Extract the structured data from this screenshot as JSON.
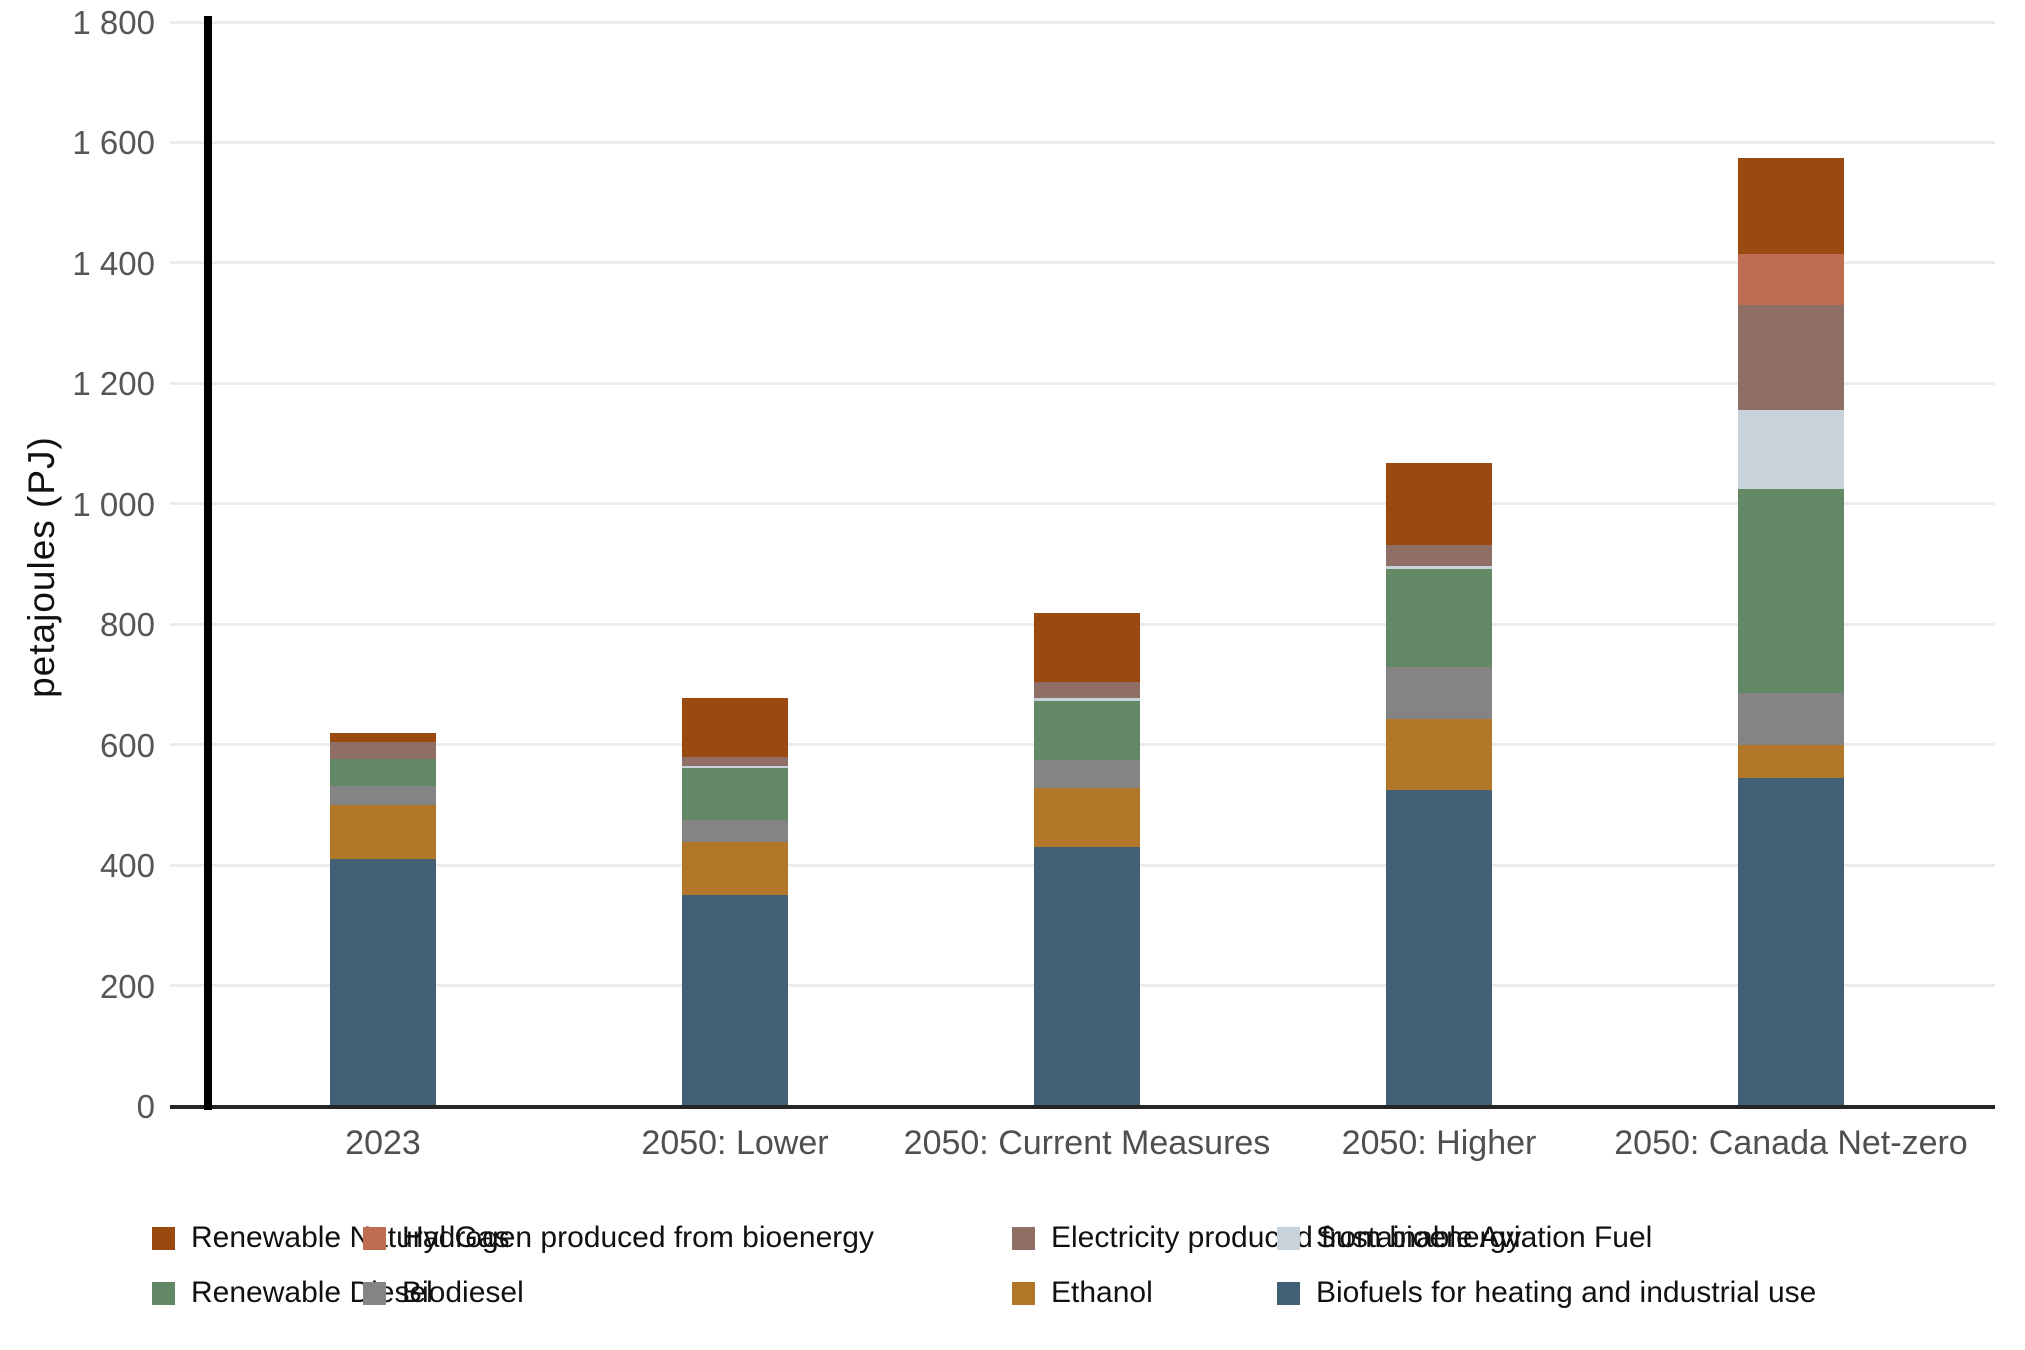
{
  "chart_data": {
    "type": "bar",
    "stacked": true,
    "title": "",
    "xlabel": "",
    "ylabel": "petajoules (PJ)",
    "ylim": [
      0,
      1800
    ],
    "grid": true,
    "legend_position": "bottom",
    "yticks": [
      {
        "value": 0,
        "label": "0"
      },
      {
        "value": 200,
        "label": "200"
      },
      {
        "value": 400,
        "label": "400"
      },
      {
        "value": 600,
        "label": "600"
      },
      {
        "value": 800,
        "label": "800"
      },
      {
        "value": 1000,
        "label": "1 000"
      },
      {
        "value": 1200,
        "label": "1 200"
      },
      {
        "value": 1400,
        "label": "1 400"
      },
      {
        "value": 1600,
        "label": "1 600"
      },
      {
        "value": 1800,
        "label": "1 800"
      }
    ],
    "categories": [
      "2023",
      "2050: Lower",
      "2050: Current Measures",
      "2050: Higher",
      "2050: Canada Net-zero"
    ],
    "series": [
      {
        "name": "Biofuels for heating and industrial use",
        "color": "#416073",
        "values": [
          410,
          350,
          430,
          525,
          545
        ]
      },
      {
        "name": "Ethanol",
        "color": "#b27629",
        "values": [
          90,
          88,
          98,
          118,
          55
        ]
      },
      {
        "name": "Biodiesel",
        "color": "#848484",
        "values": [
          31,
          37,
          47,
          86,
          85
        ]
      },
      {
        "name": "Renewable Diesel",
        "color": "#638865",
        "values": [
          45,
          86,
          98,
          163,
          340
        ]
      },
      {
        "name": "Sustainable Aviation Fuel",
        "color": "#c7d2db",
        "values": [
          0,
          3,
          5,
          5,
          130
        ]
      },
      {
        "name": "Electricity produced from bioenergy",
        "color": "#8f6e65",
        "values": [
          28,
          15,
          26,
          35,
          175
        ]
      },
      {
        "name": "Hydrogen produced from bioenergy",
        "color": "#bf6d50",
        "values": [
          0,
          0,
          0,
          0,
          85
        ]
      },
      {
        "name": "Renewable Natural Gas",
        "color": "#9a4a10",
        "values": [
          15,
          98,
          115,
          135,
          160
        ]
      }
    ],
    "legend_items": [
      "Renewable Natural Gas",
      "Hydrogen produced from bioenergy",
      "Electricity produced from bioenergy",
      "Sustainable Aviation Fuel",
      "Renewable Diesel",
      "Biodiesel",
      "Ethanol",
      "Biofuels for heating and industrial use"
    ]
  }
}
